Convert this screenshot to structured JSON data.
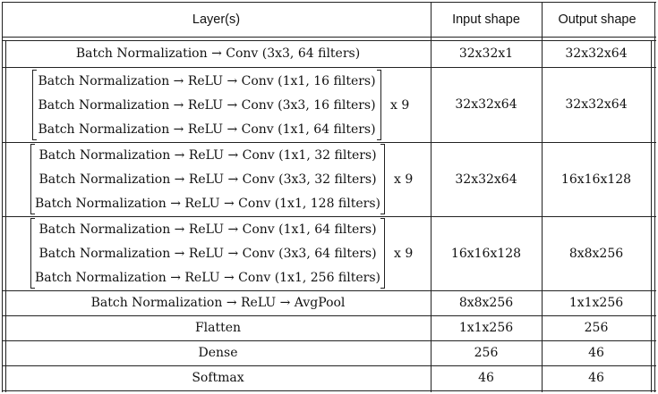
{
  "header": {
    "layers": "Layer(s)",
    "input": "Input shape",
    "output": "Output shape"
  },
  "row1": {
    "layer": "Batch Normalization → Conv (3x3, 64 filters)",
    "input": "32x32x1",
    "output": "32x32x64"
  },
  "blocks": [
    {
      "lines": [
        "Batch Normalization → ReLU → Conv (1x1, 16 filters)",
        "Batch Normalization → ReLU → Conv (3x3, 16 filters)",
        "Batch Normalization → ReLU → Conv (1x1, 64 filters)"
      ],
      "repeat": "x 9",
      "input": "32x32x64",
      "output": "32x32x64"
    },
    {
      "lines": [
        "Batch Normalization → ReLU → Conv (1x1, 32 filters)",
        "Batch Normalization → ReLU → Conv (3x3, 32 filters)",
        "Batch Normalization → ReLU → Conv (1x1, 128 filters)"
      ],
      "repeat": "x 9",
      "input": "32x32x64",
      "output": "16x16x128"
    },
    {
      "lines": [
        "Batch Normalization → ReLU → Conv (1x1, 64 filters)",
        "Batch Normalization → ReLU → Conv (3x3, 64 filters)",
        "Batch Normalization → ReLU → Conv (1x1, 256 filters)"
      ],
      "repeat": "x 9",
      "input": "16x16x128",
      "output": "8x8x256"
    }
  ],
  "rows": [
    {
      "layer": "Batch Normalization → ReLU → AvgPool",
      "input": "8x8x256",
      "output": "1x1x256"
    },
    {
      "layer": "Flatten",
      "input": "1x1x256",
      "output": "256"
    },
    {
      "layer": "Dense",
      "input": "256",
      "output": "46"
    },
    {
      "layer": "Softmax",
      "input": "46",
      "output": "46"
    }
  ]
}
